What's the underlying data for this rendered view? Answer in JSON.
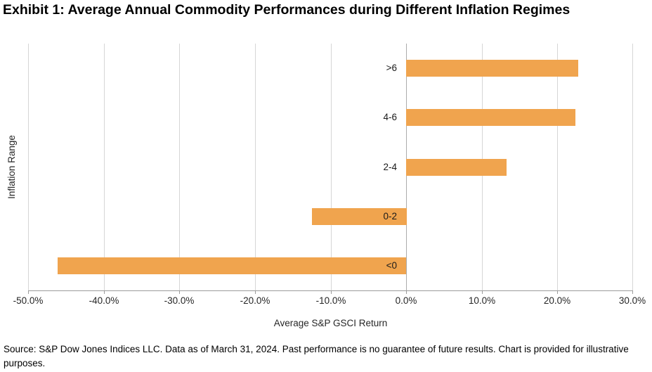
{
  "title": "Exhibit 1: Average Annual Commodity Performances during Different Inflation Regimes",
  "source_note": "Source: S&P Dow Jones Indices LLC. Data as of March 31, 2024. Past performance is no guarantee of future results. Chart is provided for illustrative purposes.",
  "chart_data": {
    "type": "bar",
    "orientation": "horizontal",
    "categories": [
      ">6",
      "4-6",
      "2-4",
      "0-2",
      "<0"
    ],
    "values": [
      22.8,
      22.4,
      13.3,
      -12.5,
      -46.1
    ],
    "values_unit": "percent",
    "xlabel": "Average S&P GSCI Return",
    "ylabel": "Inflation Range",
    "xlim": [
      -50,
      30
    ],
    "x_ticks": [
      -50,
      -40,
      -30,
      -20,
      -10,
      0,
      10,
      20,
      30
    ],
    "x_tick_labels": [
      "-50.0%",
      "-40.0%",
      "-30.0%",
      "-20.0%",
      "-10.0%",
      "0.0%",
      "10.0%",
      "20.0%",
      "30.0%"
    ],
    "grid": "vertical-only",
    "legend": "none",
    "bar_color": "#F0A44E"
  },
  "colors": {
    "bar": "#F0A44E",
    "gridline": "#D6D6D6",
    "zero_line": "#ABABAB",
    "axis_line": "#9B9B9B",
    "text": "#000000"
  }
}
